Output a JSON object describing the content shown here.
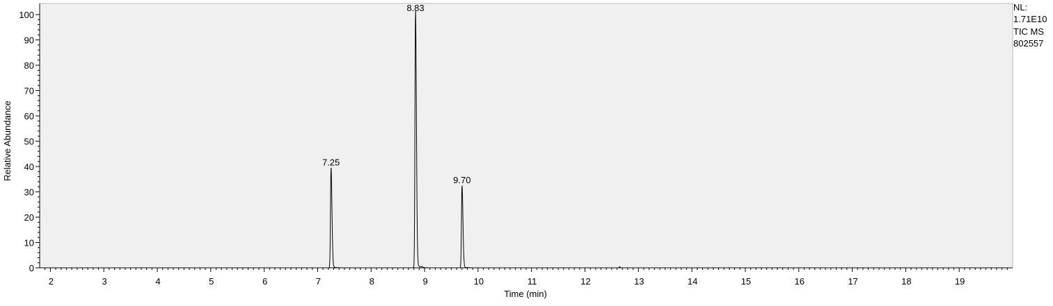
{
  "chart_data": {
    "type": "line",
    "xlabel": "Time (min)",
    "ylabel": "Relative Abundance",
    "xlim": [
      1.8,
      20.0
    ],
    "ylim": [
      0,
      100
    ],
    "x_ticks": [
      "2",
      "3",
      "4",
      "5",
      "6",
      "7",
      "8",
      "9",
      "10",
      "11",
      "12",
      "13",
      "14",
      "15",
      "16",
      "17",
      "18",
      "19"
    ],
    "y_ticks": [
      "0",
      "10",
      "20",
      "30",
      "40",
      "50",
      "60",
      "70",
      "80",
      "90",
      "100"
    ],
    "grid": false,
    "plot_background": "#f0f0f0",
    "line_color": "#000000",
    "peaks": [
      {
        "label": "7.25",
        "rt": 7.25,
        "height": 39
      },
      {
        "label": "8.83",
        "rt": 8.83,
        "height": 100
      },
      {
        "label": "9.70",
        "rt": 9.7,
        "height": 32
      }
    ],
    "info": [
      "NL:",
      "1.71E10",
      "TIC  MS",
      "802557"
    ]
  }
}
